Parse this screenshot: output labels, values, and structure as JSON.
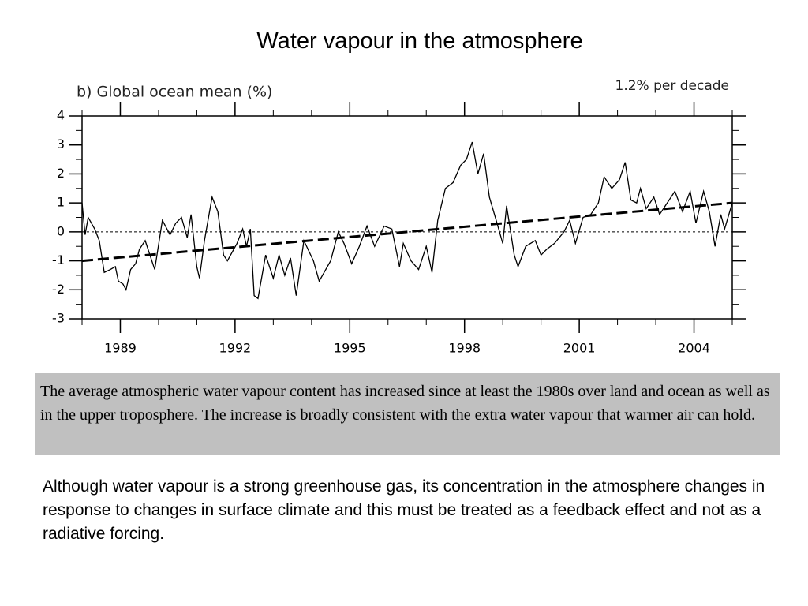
{
  "slide_title": "Water vapour in the atmosphere",
  "chart_data": {
    "type": "line",
    "title": "b) Global ocean mean (%)",
    "annotation": "1.2% per decade",
    "x": [
      1988.0,
      1988.08,
      1988.16,
      1988.33,
      1988.45,
      1988.58,
      1988.74,
      1988.87,
      1988.95,
      1989.07,
      1989.15,
      1989.27,
      1989.4,
      1989.5,
      1989.65,
      1989.9,
      1990.1,
      1990.3,
      1990.45,
      1990.6,
      1990.75,
      1990.85,
      1991.0,
      1991.07,
      1991.2,
      1991.4,
      1991.55,
      1991.7,
      1991.8,
      1992.05,
      1992.2,
      1992.3,
      1992.4,
      1992.5,
      1992.6,
      1992.8,
      1993.0,
      1993.15,
      1993.3,
      1993.45,
      1993.6,
      1993.8,
      1994.05,
      1994.2,
      1994.5,
      1994.7,
      1994.85,
      1995.05,
      1995.25,
      1995.45,
      1995.65,
      1995.9,
      1996.1,
      1996.3,
      1996.4,
      1996.6,
      1996.8,
      1997.0,
      1997.15,
      1997.3,
      1997.5,
      1997.7,
      1997.9,
      1998.05,
      1998.2,
      1998.35,
      1998.5,
      1998.65,
      1998.85,
      1999.0,
      1999.1,
      1999.3,
      1999.4,
      1999.6,
      1999.85,
      2000.0,
      2000.15,
      2000.35,
      2000.6,
      2000.75,
      2000.9,
      2001.1,
      2001.3,
      2001.5,
      2001.65,
      2001.85,
      2002.05,
      2002.2,
      2002.35,
      2002.5,
      2002.6,
      2002.75,
      2002.95,
      2003.1,
      2003.3,
      2003.5,
      2003.7,
      2003.9,
      2004.05,
      2004.25,
      2004.4,
      2004.55,
      2004.7,
      2004.8,
      2005.0
    ],
    "values": [
      1.0,
      -0.1,
      0.5,
      0.1,
      -0.3,
      -1.4,
      -1.3,
      -1.2,
      -1.7,
      -1.8,
      -2.0,
      -1.3,
      -1.1,
      -0.6,
      -0.3,
      -1.3,
      0.4,
      -0.1,
      0.3,
      0.5,
      -0.2,
      0.6,
      -1.2,
      -1.6,
      -0.3,
      1.2,
      0.7,
      -0.8,
      -1.0,
      -0.4,
      0.1,
      -0.5,
      0.1,
      -2.2,
      -2.3,
      -0.8,
      -1.6,
      -0.8,
      -1.5,
      -0.9,
      -2.2,
      -0.3,
      -1.0,
      -1.7,
      -1.0,
      0.0,
      -0.4,
      -1.1,
      -0.5,
      0.2,
      -0.5,
      0.2,
      0.1,
      -1.2,
      -0.4,
      -1.0,
      -1.3,
      -0.5,
      -1.4,
      0.4,
      1.5,
      1.7,
      2.3,
      2.5,
      3.1,
      2.0,
      2.7,
      1.2,
      0.3,
      -0.4,
      0.9,
      -0.8,
      -1.2,
      -0.5,
      -0.3,
      -0.8,
      -0.6,
      -0.4,
      0.0,
      0.4,
      -0.4,
      0.5,
      0.6,
      1.0,
      1.9,
      1.5,
      1.8,
      2.4,
      1.1,
      1.0,
      1.5,
      0.8,
      1.2,
      0.6,
      1.0,
      1.4,
      0.7,
      1.4,
      0.3,
      1.4,
      0.7,
      -0.5,
      0.6,
      0.1,
      1.0
    ],
    "color": "#000000",
    "trend": {
      "x": [
        1988,
        2005
      ],
      "values": [
        -1.0,
        1.0
      ]
    },
    "reference_line": 0,
    "xlim": [
      1988,
      2005
    ],
    "xticks": [
      1989,
      1992,
      1995,
      1998,
      2001,
      2004
    ],
    "xminorticks": [
      1988,
      1989,
      1990,
      1991,
      1992,
      1993,
      1994,
      1995,
      1996,
      1997,
      1998,
      1999,
      2000,
      2001,
      2002,
      2003,
      2004,
      2005
    ],
    "ylim": [
      -3,
      4
    ],
    "yticks": [
      -3,
      -2,
      -1,
      0,
      1,
      2,
      3,
      4
    ],
    "yminorticks": [
      -2.5,
      -1.5,
      -0.5,
      0.5,
      1.5,
      2.5,
      3.5
    ]
  },
  "box_text": "The average atmospheric water vapour content has increased since at least the 1980s over land and ocean as well as in the upper troposphere. The increase is broadly consistent with the extra water vapour that warmer air can hold.",
  "body_text": "Although water vapour is a strong greenhouse gas, its concentration in the atmosphere changes in response to changes in surface climate and this must be treated as a feedback effect and not as a radiative forcing."
}
